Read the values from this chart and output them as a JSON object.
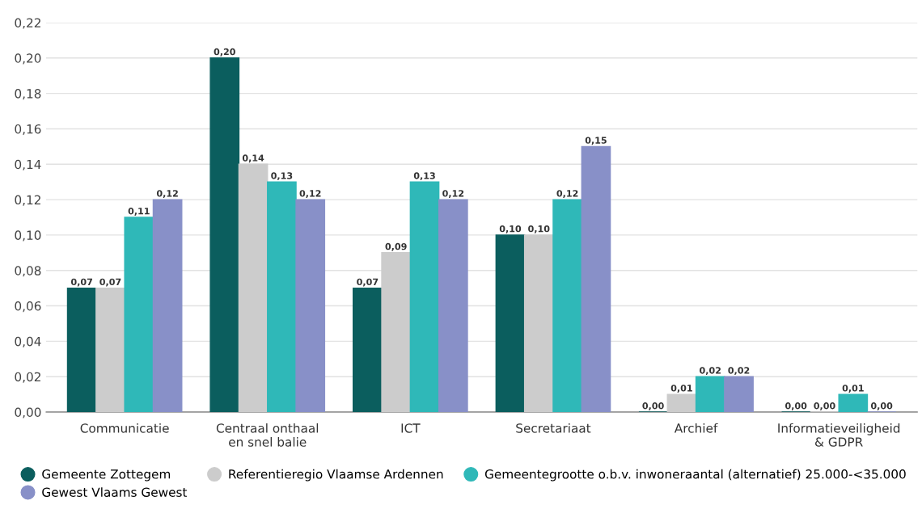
{
  "chart_data": {
    "type": "bar",
    "categories": [
      "Communicatie",
      "Centraal onthaal\nen snel balie",
      "ICT",
      "Secretariaat",
      "Archief",
      "Informatieveiligheid\n& GDPR"
    ],
    "series": [
      {
        "name": "Gemeente Zottegem",
        "color": "#0b5e5e",
        "values": [
          0.07,
          0.2,
          0.07,
          0.1,
          0.0,
          0.0
        ],
        "value_labels": [
          "0,07",
          "0,20",
          "0,07",
          "0,10",
          "0,00",
          "0,00"
        ]
      },
      {
        "name": "Referentieregio Vlaamse Ardennen",
        "color": "#cccccc",
        "values": [
          0.07,
          0.14,
          0.09,
          0.1,
          0.01,
          0.0
        ],
        "value_labels": [
          "0,07",
          "0,14",
          "0,09",
          "0,10",
          "0,01",
          "0,00"
        ]
      },
      {
        "name": "Gemeentegrootte o.b.v. inwoneraantal (alternatief) 25.000-<35.000",
        "color": "#2fb8b8",
        "values": [
          0.11,
          0.13,
          0.13,
          0.12,
          0.02,
          0.01
        ],
        "value_labels": [
          "0,11",
          "0,13",
          "0,13",
          "0,12",
          "0,02",
          "0,01"
        ]
      },
      {
        "name": "Gewest Vlaams Gewest",
        "color": "#8890c8",
        "values": [
          0.12,
          0.12,
          0.12,
          0.15,
          0.02,
          0.0
        ],
        "value_labels": [
          "0,12",
          "0,12",
          "0,12",
          "0,15",
          "0,02",
          "0,00"
        ]
      }
    ],
    "ylim": [
      0,
      0.22
    ],
    "yticks": [
      {
        "value": 0,
        "label": "0,00"
      },
      {
        "value": 0.02,
        "label": "0,02"
      },
      {
        "value": 0.04,
        "label": "0,04"
      },
      {
        "value": 0.06,
        "label": "0,06"
      },
      {
        "value": 0.08,
        "label": "0,08"
      },
      {
        "value": 0.1,
        "label": "0,10"
      },
      {
        "value": 0.12,
        "label": "0,12"
      },
      {
        "value": 0.14,
        "label": "0,14"
      },
      {
        "value": 0.16,
        "label": "0,16"
      },
      {
        "value": 0.18,
        "label": "0,18"
      },
      {
        "value": 0.2,
        "label": "0,20"
      },
      {
        "value": 0.22,
        "label": "0,22"
      }
    ],
    "grid": "y",
    "legend": "bottom"
  }
}
